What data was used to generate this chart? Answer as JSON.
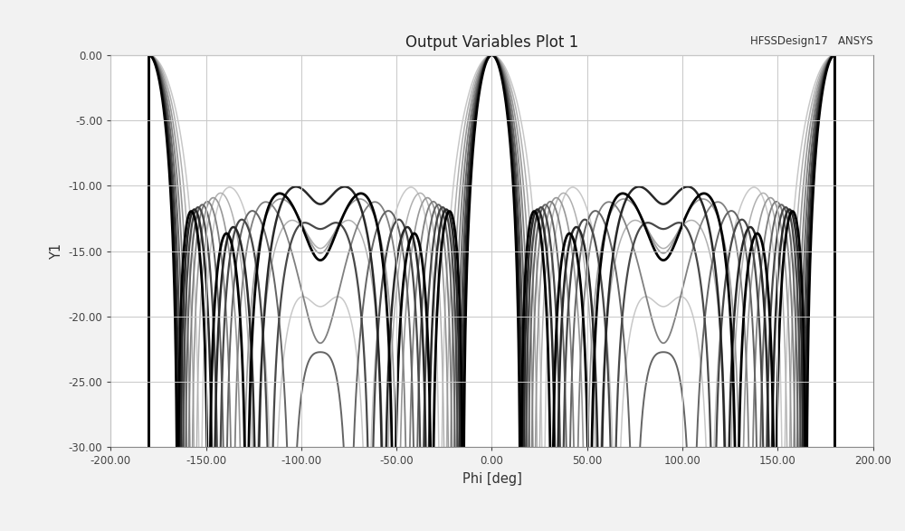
{
  "title": "Output Variables Plot 1",
  "subtitle": "HFSSDesign17   ANSYS",
  "xlabel": "Phi [deg]",
  "ylabel": "Y1",
  "xlim": [
    -200,
    200
  ],
  "ylim": [
    -30,
    0
  ],
  "xticks": [
    -200,
    -150,
    -100,
    -50,
    0,
    50,
    100,
    150,
    200
  ],
  "yticks": [
    0,
    -5,
    -10,
    -15,
    -20,
    -25,
    -30
  ],
  "background_color": "#f2f2f2",
  "plot_bg_color": "#ffffff",
  "grid_color": "#c8c8c8",
  "curves": [
    {
      "color": "#c8c8c8",
      "lw": 1.1
    },
    {
      "color": "#b0b0b0",
      "lw": 1.1
    },
    {
      "color": "#989898",
      "lw": 1.2
    },
    {
      "color": "#808080",
      "lw": 1.3
    },
    {
      "color": "#646464",
      "lw": 1.4
    },
    {
      "color": "#484848",
      "lw": 1.6
    },
    {
      "color": "#282828",
      "lw": 1.8
    },
    {
      "color": "#000000",
      "lw": 2.0
    }
  ]
}
